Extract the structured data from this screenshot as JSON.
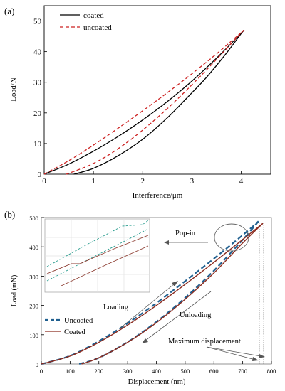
{
  "colors": {
    "coated_a": "#000000",
    "uncoated_a": "#cc2222",
    "uncoated_b": "#1f5f8f",
    "coated_b": "#8b2b1f",
    "inset_uncoated": "#2a9d8f",
    "inset_coated": "#8b3a2f",
    "annotation": "#444444"
  },
  "chart_data": [
    {
      "panel_label": "(a)",
      "type": "line",
      "xlabel": "Interference/μm",
      "ylabel": "Load/N",
      "xlim": [
        0,
        4.6
      ],
      "ylim": [
        0,
        55
      ],
      "xticks": [
        "0",
        "1",
        "2",
        "3",
        "4"
      ],
      "yticks": [
        "0",
        "10",
        "20",
        "30",
        "40",
        "50"
      ],
      "grid": false,
      "legend_position": "top-left",
      "series": [
        {
          "name": "coated",
          "style": "solid",
          "color": "#000000",
          "loading": {
            "x": [
              0,
              0.5,
              1.0,
              1.5,
              2.0,
              2.5,
              3.0,
              3.5,
              4.0,
              4.05
            ],
            "y": [
              0,
              3.3,
              7.5,
              12.3,
              17.7,
              23.7,
              30.4,
              37.9,
              46.0,
              47.0
            ]
          },
          "unloading": {
            "x": [
              4.05,
              3.7,
              3.3,
              3.0,
              2.5,
              2.0,
              1.5,
              1.0,
              0.6
            ],
            "y": [
              47.0,
              39.5,
              31.7,
              26.6,
              18.4,
              11.4,
              6.0,
              1.9,
              0
            ]
          }
        },
        {
          "name": "uncoated",
          "style": "dashed",
          "color": "#cc2222",
          "loading": {
            "x": [
              0,
              0.5,
              1.0,
              1.5,
              2.0,
              2.5,
              3.0,
              3.5,
              4.0,
              4.05
            ],
            "y": [
              0,
              4.4,
              9.5,
              15.0,
              20.7,
              26.6,
              32.8,
              39.3,
              46.2,
              47.0
            ]
          },
          "unloading": {
            "x": [
              4.05,
              3.5,
              3.0,
              2.5,
              2.0,
              1.5,
              1.0,
              0.45
            ],
            "y": [
              47.0,
              37.5,
              29.2,
              21.4,
              14.4,
              8.3,
              3.5,
              0
            ]
          }
        }
      ]
    },
    {
      "panel_label": "(b)",
      "type": "line",
      "xlabel": "Displacement (nm)",
      "ylabel": "Load (mN)",
      "xlim": [
        0,
        800
      ],
      "ylim": [
        0,
        500
      ],
      "xticks": [
        "0",
        "100",
        "200",
        "300",
        "400",
        "500",
        "600",
        "700",
        "800"
      ],
      "yticks": [
        "0",
        "100",
        "200",
        "300",
        "400",
        "500"
      ],
      "grid": false,
      "legend_position": "middle-left",
      "annotations": [
        "Pop-in",
        "Loading",
        "Unloading",
        "Maximum displacement"
      ],
      "series": [
        {
          "name": "Uncoated",
          "style": "dashed",
          "color": "#1f5f8f",
          "loading": {
            "x": [
              0,
              100,
              200,
              300,
              400,
              500,
              600,
              700,
              755
            ],
            "y": [
              0,
              28,
              78,
              139,
              208,
              283,
              360,
              440,
              487
            ]
          },
          "unloading": {
            "x": [
              755,
              700,
              600,
              500,
              400,
              300,
              200,
              130
            ],
            "y": [
              487,
              424,
              319,
              226,
              144,
              75,
              21,
              0
            ]
          }
        },
        {
          "name": "Coated",
          "style": "solid",
          "color": "#8b2b1f",
          "loading": {
            "x": [
              0,
              100,
              200,
              300,
              400,
              500,
              600,
              700,
              770
            ],
            "y": [
              0,
              27,
              74,
              133,
              200,
              272,
              347,
              425,
              480
            ]
          },
          "unloading": {
            "x": [
              770,
              700,
              600,
              500,
              400,
              300,
              200,
              140
            ],
            "y": [
              480,
              413,
              311,
              221,
              141,
              74,
              21,
              0
            ]
          }
        }
      ]
    }
  ]
}
